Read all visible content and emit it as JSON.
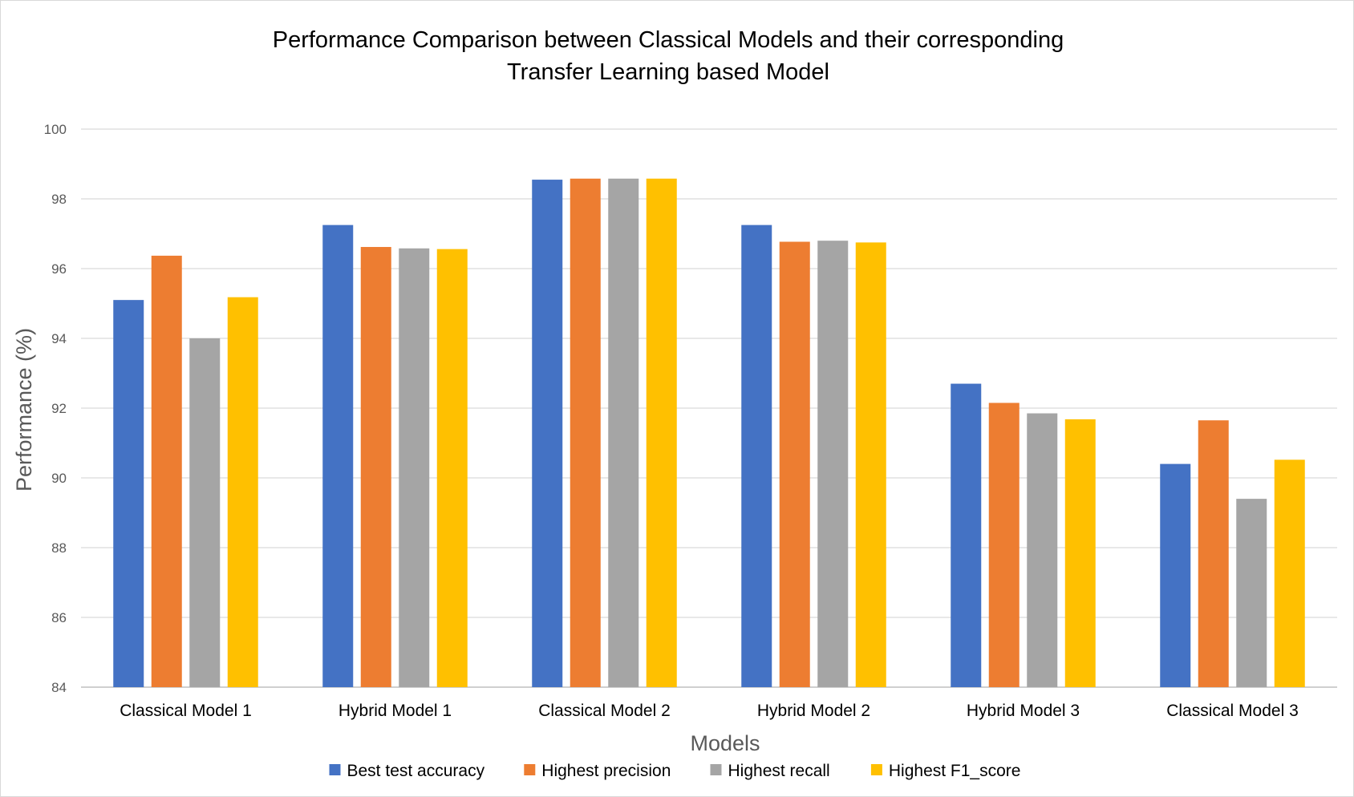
{
  "chart_data": {
    "type": "bar",
    "title_lines": [
      "Performance  Comparison between Classical Models and their  corresponding",
      "Transfer Learning based Model"
    ],
    "xlabel": "Models",
    "ylabel": "Performance  (%)",
    "ylim": [
      84,
      100
    ],
    "yticks": [
      84,
      86,
      88,
      90,
      92,
      94,
      96,
      98,
      100
    ],
    "grid": true,
    "legend_position": "bottom",
    "categories": [
      "Classical Model 1",
      "Hybrid Model 1",
      "Classical Model 2",
      "Hybrid Model 2",
      "Hybrid Model 3",
      "Classical Model 3"
    ],
    "series": [
      {
        "name": "Best test accuracy",
        "color": "#4472c4",
        "values": [
          95.1,
          97.25,
          98.55,
          97.25,
          92.7,
          90.4
        ]
      },
      {
        "name": "Highest precision",
        "color": "#ed7d31",
        "values": [
          96.37,
          96.62,
          98.58,
          96.77,
          92.15,
          91.65
        ]
      },
      {
        "name": "Highest recall",
        "color": "#a5a5a5",
        "values": [
          94.0,
          96.58,
          98.58,
          96.8,
          91.85,
          89.4
        ]
      },
      {
        "name": "Highest F1_score",
        "color": "#ffc000",
        "values": [
          95.18,
          96.56,
          98.58,
          96.75,
          91.68,
          90.52
        ]
      }
    ]
  }
}
